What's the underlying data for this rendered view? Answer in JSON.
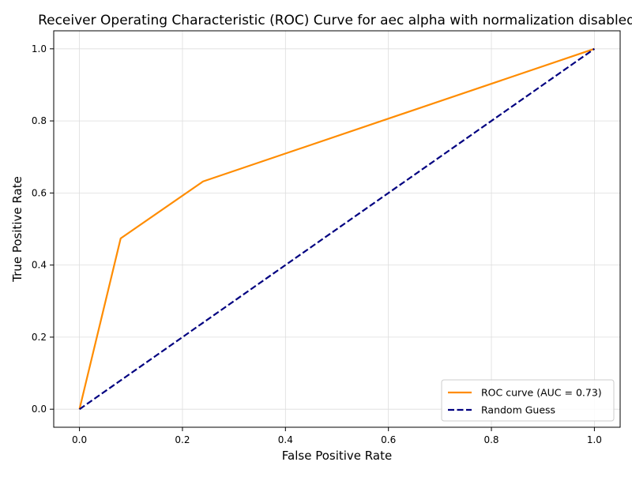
{
  "chart_data": {
    "type": "line",
    "title": "Receiver Operating Characteristic (ROC) Curve for aec alpha with normalization disabled",
    "xlabel": "False Positive Rate",
    "ylabel": "True Positive Rate",
    "xlim": [
      -0.05,
      1.05
    ],
    "ylim": [
      -0.05,
      1.05
    ],
    "xticks": [
      0.0,
      0.2,
      0.4,
      0.6,
      0.8,
      1.0
    ],
    "yticks": [
      0.0,
      0.2,
      0.4,
      0.6,
      0.8,
      1.0
    ],
    "xtick_labels": [
      "0.0",
      "0.2",
      "0.4",
      "0.6",
      "0.8",
      "1.0"
    ],
    "ytick_labels": [
      "0.0",
      "0.2",
      "0.4",
      "0.6",
      "0.8",
      "1.0"
    ],
    "grid": true,
    "legend_position": "lower-right",
    "series": [
      {
        "name": "ROC curve (AUC = 0.73)",
        "color": "#ff8c00",
        "style": "solid",
        "x": [
          0.0,
          0.08,
          0.24,
          1.0
        ],
        "y": [
          0.0,
          0.474,
          0.632,
          1.0
        ]
      },
      {
        "name": "Random Guess",
        "color": "#000080",
        "style": "dashed",
        "x": [
          0.0,
          1.0
        ],
        "y": [
          0.0,
          1.0
        ]
      }
    ]
  }
}
